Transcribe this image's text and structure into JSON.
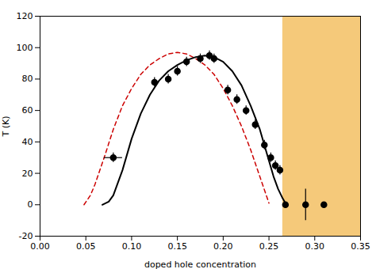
{
  "chart_data": {
    "type": "scatter",
    "xlabel": "doped hole concentration",
    "ylabel": "T (K)",
    "xlim": [
      0.0,
      0.35
    ],
    "ylim": [
      -20,
      120
    ],
    "xticks": [
      {
        "value": 0.0,
        "label": "0.00"
      },
      0.05,
      {
        "value": 0.1,
        "label": "0.10"
      },
      0.15,
      {
        "value": 0.2,
        "label": "0.20"
      },
      0.25,
      {
        "value": 0.3,
        "label": "0.30"
      },
      0.35
    ],
    "yticks": [
      -20,
      0,
      20,
      40,
      60,
      80,
      100,
      120
    ],
    "grid": false,
    "shaded_region": {
      "x": [
        0.265,
        0.35
      ],
      "color": "#f5c97a"
    },
    "series": [
      {
        "type": "line",
        "color": "#cc0000",
        "line_style": "dashed",
        "x": [
          0.048,
          0.055,
          0.06,
          0.07,
          0.08,
          0.09,
          0.1,
          0.11,
          0.12,
          0.13,
          0.14,
          0.15,
          0.16,
          0.17,
          0.18,
          0.19,
          0.2,
          0.21,
          0.22,
          0.23,
          0.24,
          0.25
        ],
        "values": [
          0,
          6,
          13,
          30,
          48,
          63,
          74,
          83,
          89,
          93,
          96,
          97,
          96,
          93,
          89,
          83,
          74,
          63,
          50,
          35,
          18,
          1
        ]
      },
      {
        "type": "line",
        "color": "#000000",
        "line_style": "solid",
        "x": [
          0.068,
          0.075,
          0.08,
          0.09,
          0.1,
          0.11,
          0.12,
          0.13,
          0.14,
          0.15,
          0.16,
          0.17,
          0.18,
          0.19,
          0.2,
          0.21,
          0.22,
          0.23,
          0.24,
          0.25,
          0.255,
          0.26,
          0.265,
          0.268,
          0.27
        ],
        "values": [
          0,
          2,
          6,
          22,
          42,
          58,
          70,
          79,
          85,
          89,
          92,
          94,
          95,
          94,
          91,
          85,
          76,
          63,
          48,
          28,
          18,
          10,
          4,
          1,
          0
        ]
      },
      {
        "type": "scatter",
        "color": "#000000",
        "marker": "circle",
        "x": [
          0.08,
          0.125,
          0.14,
          0.15,
          0.16,
          0.175,
          0.185,
          0.19,
          0.205,
          0.215,
          0.225,
          0.235,
          0.245,
          0.252,
          0.257,
          0.262,
          0.268,
          0.29,
          0.31
        ],
        "values": [
          30,
          78,
          80,
          85,
          91,
          93,
          95,
          93,
          73,
          67,
          60,
          51,
          38,
          30,
          25,
          22,
          0,
          0,
          0
        ],
        "xerr_lo": [
          0.01,
          0,
          0,
          0,
          0,
          0,
          0,
          0,
          0,
          0,
          0,
          0,
          0,
          0,
          0,
          0,
          0,
          0,
          0
        ],
        "xerr_hi": [
          0.01,
          0,
          0,
          0,
          0,
          0,
          0,
          0,
          0,
          0,
          0,
          0,
          0,
          0,
          0,
          0,
          0,
          0,
          0
        ],
        "yerr_lo": [
          3,
          3,
          3,
          3,
          3,
          3,
          3,
          3,
          3,
          3,
          3,
          3,
          3,
          3,
          3,
          3,
          0,
          10,
          0
        ],
        "yerr_hi": [
          3,
          3,
          3,
          3,
          3,
          3,
          3,
          3,
          3,
          3,
          3,
          3,
          3,
          3,
          3,
          3,
          0,
          10,
          0
        ]
      }
    ]
  }
}
